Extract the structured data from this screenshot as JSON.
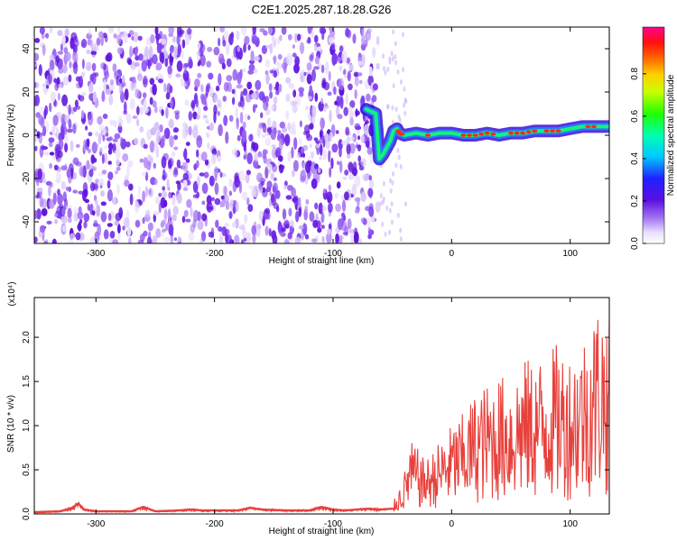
{
  "title": "C2E1.2025.287.18.28.G26",
  "chart_data": [
    {
      "type": "heatmap",
      "xlabel": "Height of straight line (km)",
      "ylabel": "Frequency (Hz)",
      "xlim": [
        -352,
        133
      ],
      "ylim": [
        -50,
        50
      ],
      "xticks": [
        -300,
        -200,
        -100,
        0,
        100
      ],
      "yticks": [
        -40,
        -20,
        0,
        20,
        40
      ],
      "noise_region_km": [
        -352,
        -62
      ],
      "gap_region_km": [
        -60,
        133
      ],
      "signal_track": {
        "x_km": [
          -72,
          -68,
          -64,
          -61,
          -58,
          -55,
          -52,
          -49,
          -46,
          -44,
          -40,
          -30,
          -20,
          -10,
          0,
          10,
          20,
          30,
          40,
          50,
          60,
          70,
          80,
          90,
          100,
          110,
          120,
          133
        ],
        "freq_hz": [
          12,
          11,
          10,
          -11,
          -9,
          -6,
          -3,
          2,
          3,
          1,
          0,
          1,
          0,
          1,
          1,
          0,
          0,
          1,
          0,
          1,
          1,
          2,
          2,
          2,
          3,
          4,
          4,
          4
        ]
      },
      "colorbar": {
        "label": "Normalized spectral amplitude",
        "range": [
          0.0,
          1.0
        ],
        "ticks": [
          "0.0",
          "0.2",
          "0.4",
          "0.6",
          "0.8"
        ]
      }
    },
    {
      "type": "line",
      "xlabel": "Height of straight line (km)",
      "ylabel": "SNR (10 * v/v)",
      "yscale_label": "(x10⁴)",
      "xlim": [
        -352,
        133
      ],
      "ylim": [
        0,
        2.45
      ],
      "xticks": [
        -300,
        -200,
        -100,
        0,
        100
      ],
      "yticks": [
        "0.0",
        "0.5",
        "1.0",
        "1.5",
        "2.0"
      ],
      "series": [
        {
          "name": "SNR",
          "color": "#e8413c",
          "x": [
            -352,
            -330,
            -320,
            -315,
            -310,
            -300,
            -270,
            -260,
            -250,
            -230,
            -220,
            -210,
            -180,
            -170,
            -160,
            -140,
            -120,
            -110,
            -100,
            -90,
            -80,
            -70,
            -60,
            -50,
            -45,
            -40,
            -35,
            -30,
            -25,
            -20,
            -10,
            0,
            10,
            20,
            30,
            40,
            50,
            60,
            70,
            80,
            90,
            100,
            110,
            115,
            120,
            125,
            130,
            133
          ],
          "y": [
            0.02,
            0.03,
            0.07,
            0.12,
            0.05,
            0.03,
            0.03,
            0.08,
            0.03,
            0.04,
            0.05,
            0.04,
            0.04,
            0.07,
            0.05,
            0.04,
            0.04,
            0.08,
            0.05,
            0.04,
            0.05,
            0.06,
            0.05,
            0.06,
            0.15,
            0.25,
            0.45,
            0.42,
            0.35,
            0.35,
            0.45,
            0.55,
            0.62,
            0.75,
            0.8,
            0.85,
            0.85,
            0.95,
            0.95,
            1.0,
            1.05,
            1.0,
            1.1,
            1.15,
            1.25,
            1.35,
            1.25,
            1.2
          ]
        }
      ]
    }
  ]
}
